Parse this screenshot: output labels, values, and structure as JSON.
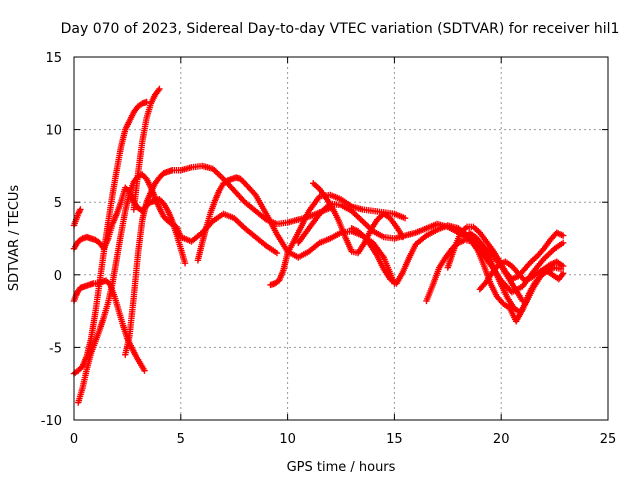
{
  "chart_data": {
    "type": "scatter",
    "title": "Day 070 of 2023, Sidereal Day-to-day VTEC variation (SDTVAR) for receiver hil1",
    "xlabel": "GPS time / hours",
    "ylabel": "SDTVAR / TECUs",
    "xlim": [
      0,
      25
    ],
    "ylim": [
      -10,
      15
    ],
    "xticks": [
      0,
      5,
      10,
      15,
      20,
      25
    ],
    "yticks": [
      -10,
      -5,
      0,
      5,
      10,
      15
    ],
    "grid": true,
    "marker": "plus",
    "color": "#ff0000",
    "series": [
      {
        "name": "track-1",
        "x": [
          0.0,
          0.2,
          0.4,
          0.6,
          0.8,
          1.0,
          1.2,
          1.4,
          1.6,
          1.8,
          2.0,
          2.2,
          2.4,
          2.6,
          2.8,
          3.0,
          3.2,
          3.4
        ],
        "y": [
          -6.8,
          -6.6,
          -6.3,
          -5.6,
          -4.4,
          -2.6,
          -0.5,
          1.6,
          3.6,
          5.5,
          7.2,
          8.8,
          10.0,
          10.6,
          11.2,
          11.6,
          11.8,
          11.9
        ]
      },
      {
        "name": "track-2",
        "x": [
          0.0,
          0.2,
          0.4,
          0.6,
          0.8,
          1.0,
          1.2,
          1.4,
          1.6,
          1.8,
          2.0,
          2.2,
          2.4,
          2.6,
          2.8,
          3.0,
          3.2,
          3.4,
          3.6,
          3.8,
          4.0,
          4.2,
          4.4,
          4.6,
          4.8,
          5.0,
          5.2
        ],
        "y": [
          1.8,
          2.3,
          2.5,
          2.6,
          2.5,
          2.4,
          2.2,
          1.8,
          2.5,
          3.5,
          4.2,
          5.0,
          6.0,
          5.7,
          5.0,
          4.6,
          4.4,
          4.8,
          5.0,
          5.1,
          5.2,
          4.9,
          4.4,
          3.7,
          2.8,
          1.8,
          0.8
        ]
      },
      {
        "name": "track-3",
        "x": [
          0.0,
          0.1,
          0.2,
          0.3,
          0.5,
          0.7,
          0.9,
          1.1,
          1.3,
          1.5,
          1.7,
          1.9,
          2.1,
          2.3,
          2.5,
          2.7,
          2.9,
          3.1,
          3.3
        ],
        "y": [
          -1.8,
          -1.4,
          -1.1,
          -0.9,
          -0.8,
          -0.7,
          -0.6,
          -0.6,
          -0.5,
          -0.4,
          -0.7,
          -1.5,
          -2.5,
          -3.5,
          -4.4,
          -5.0,
          -5.6,
          -6.1,
          -6.6
        ]
      },
      {
        "name": "track-4",
        "x": [
          0.0,
          0.1,
          0.2,
          0.3
        ],
        "y": [
          3.4,
          3.8,
          4.2,
          4.5
        ]
      },
      {
        "name": "track-5",
        "x": [
          0.2,
          0.4,
          0.6,
          0.8,
          1.0,
          1.2,
          1.4,
          1.6,
          1.8,
          2.0,
          2.2,
          2.4,
          2.6,
          2.8,
          3.0,
          3.2,
          3.4,
          3.6,
          3.8,
          4.0,
          4.2,
          4.4,
          4.6,
          4.8,
          5.0,
          5.5,
          6.0,
          6.5,
          7.0,
          7.5,
          8.0,
          8.5,
          9.0,
          9.5
        ],
        "y": [
          -8.8,
          -7.8,
          -6.5,
          -5.4,
          -4.6,
          -3.8,
          -2.9,
          -1.9,
          -0.6,
          1.1,
          2.8,
          4.4,
          5.6,
          6.4,
          6.8,
          6.9,
          6.6,
          6.0,
          5.3,
          4.6,
          4.0,
          3.7,
          3.5,
          3.3,
          2.6,
          2.3,
          2.9,
          3.7,
          4.2,
          3.9,
          3.2,
          2.6,
          2.0,
          1.5
        ]
      },
      {
        "name": "track-6",
        "x": [
          2.4,
          2.6,
          2.8,
          3.0,
          3.2,
          3.4,
          3.6,
          3.8,
          4.0,
          4.2,
          4.4,
          4.6,
          4.8,
          5.0,
          5.5,
          6.0,
          6.5,
          7.0,
          7.5,
          8.0,
          8.5,
          9.0,
          9.5,
          10.0,
          10.5,
          11.0,
          11.5,
          12.0
        ],
        "y": [
          -5.5,
          -4.2,
          -1.5,
          1.5,
          3.8,
          5.0,
          5.7,
          6.3,
          6.7,
          7.0,
          7.1,
          7.2,
          7.2,
          7.2,
          7.4,
          7.5,
          7.3,
          6.6,
          5.8,
          5.0,
          4.4,
          3.8,
          3.5,
          3.6,
          3.8,
          4.0,
          4.3,
          4.6
        ]
      },
      {
        "name": "track-7",
        "x": [
          2.8,
          3.0,
          3.2,
          3.4,
          3.6,
          3.8,
          4.0
        ],
        "y": [
          4.5,
          7.0,
          9.2,
          10.8,
          11.8,
          12.4,
          12.8
        ]
      },
      {
        "name": "track-8",
        "x": [
          5.8,
          6.0,
          6.2,
          6.4,
          6.6,
          6.8,
          7.0,
          7.2,
          7.4,
          7.6,
          7.8,
          8.0,
          8.5,
          9.0,
          9.5,
          10.0,
          10.5,
          11.0,
          11.5,
          12.0,
          12.5,
          13.0,
          13.5,
          14.0,
          14.5,
          15.0
        ],
        "y": [
          1.0,
          2.2,
          3.3,
          4.3,
          5.1,
          5.8,
          6.3,
          6.5,
          6.6,
          6.7,
          6.6,
          6.3,
          5.5,
          4.2,
          2.8,
          1.6,
          1.2,
          1.6,
          2.2,
          2.5,
          2.9,
          3.0,
          2.7,
          2.2,
          1.2,
          -0.6
        ]
      },
      {
        "name": "track-9",
        "x": [
          9.2,
          9.4,
          9.6,
          9.8,
          10.0,
          10.5,
          11.0,
          11.5,
          12.0,
          12.5,
          13.0,
          13.5,
          14.0,
          14.5,
          15.0,
          15.5
        ],
        "y": [
          -0.7,
          -0.6,
          -0.4,
          0.3,
          1.5,
          2.9,
          4.4,
          5.4,
          5.5,
          5.2,
          4.7,
          4.5,
          4.4,
          4.3,
          4.2,
          3.9
        ]
      },
      {
        "name": "track-10",
        "x": [
          10.5,
          11.0,
          11.5,
          12.0,
          12.5,
          13.0,
          13.5,
          14.0,
          14.5,
          15.0,
          15.5,
          16.0,
          16.5,
          17.0,
          17.5,
          18.0,
          18.5,
          19.0,
          19.5,
          20.0,
          20.5,
          21.0
        ],
        "y": [
          2.2,
          3.2,
          4.2,
          4.9,
          4.8,
          4.4,
          3.7,
          3.0,
          2.6,
          2.5,
          2.7,
          2.9,
          3.2,
          3.5,
          3.3,
          2.9,
          2.5,
          2.1,
          1.5,
          0.6,
          -0.6,
          -1.8
        ]
      },
      {
        "name": "track-11",
        "x": [
          11.2,
          11.5,
          11.8,
          12.1,
          12.4,
          12.7,
          13.0,
          13.3,
          13.6,
          13.9,
          14.2,
          14.5,
          14.8,
          15.1,
          15.4
        ],
        "y": [
          6.3,
          5.9,
          5.3,
          4.6,
          3.7,
          2.6,
          1.6,
          1.5,
          2.2,
          3.1,
          3.8,
          4.2,
          3.9,
          3.3,
          2.6
        ]
      },
      {
        "name": "track-12",
        "x": [
          13.0,
          13.3,
          13.6,
          13.9,
          14.2,
          14.5,
          14.8,
          15.1,
          15.4,
          15.7,
          16.0,
          16.5,
          17.0,
          17.5,
          18.0,
          18.5,
          19.0,
          19.5,
          20.0,
          20.5,
          21.0,
          21.5,
          22.0,
          22.5,
          22.9
        ],
        "y": [
          3.2,
          3.0,
          2.6,
          2.0,
          1.3,
          0.4,
          -0.3,
          -0.6,
          0.2,
          1.2,
          2.1,
          2.7,
          3.1,
          3.4,
          3.2,
          2.6,
          1.7,
          0.7,
          -0.4,
          -1.2,
          -0.8,
          0.2,
          1.1,
          1.8,
          2.2
        ]
      },
      {
        "name": "track-13",
        "x": [
          16.5,
          16.8,
          17.1,
          17.4,
          17.7,
          18.0,
          18.3,
          18.6,
          18.9,
          19.2,
          19.5,
          19.8,
          20.1,
          20.4,
          20.7,
          21.0,
          21.3,
          21.6,
          21.9,
          22.2,
          22.5,
          22.8
        ],
        "y": [
          -1.8,
          -0.7,
          0.5,
          1.2,
          1.8,
          2.2,
          2.4,
          2.3,
          1.7,
          0.6,
          -0.6,
          -1.5,
          -2.0,
          -2.3,
          -3.2,
          -2.4,
          -1.3,
          -0.5,
          0.0,
          0.3,
          0.5,
          0.4
        ]
      },
      {
        "name": "track-14",
        "x": [
          17.5,
          17.8,
          18.1,
          18.4,
          18.7,
          19.0,
          19.3,
          19.6,
          19.9,
          20.2,
          20.5,
          20.8,
          21.1,
          21.4,
          21.7,
          22.0,
          22.3,
          22.6,
          22.9
        ],
        "y": [
          0.5,
          1.8,
          2.9,
          3.3,
          3.3,
          2.9,
          2.3,
          1.7,
          1.0,
          0.2,
          -0.3,
          -0.1,
          0.4,
          0.9,
          1.3,
          1.8,
          2.4,
          2.9,
          2.7
        ]
      },
      {
        "name": "track-15",
        "x": [
          18.5,
          18.8,
          19.1,
          19.4,
          19.7,
          20.0,
          20.3,
          20.6,
          20.9,
          21.2,
          21.5,
          21.8,
          22.1,
          22.4,
          22.7,
          22.9
        ],
        "y": [
          2.9,
          2.6,
          2.1,
          1.3,
          0.3,
          -0.7,
          -1.6,
          -2.3,
          -2.6,
          -1.8,
          -0.9,
          -0.2,
          0.3,
          0.0,
          -0.3,
          0.1
        ]
      },
      {
        "name": "track-16",
        "x": [
          19.0,
          19.3,
          19.6,
          19.9,
          20.2,
          20.5,
          20.8,
          21.1,
          21.4,
          21.7,
          22.0,
          22.3,
          22.6,
          22.9
        ],
        "y": [
          -1.0,
          -0.5,
          0.2,
          0.7,
          0.9,
          0.6,
          0.1,
          -0.4,
          -0.2,
          0.1,
          0.4,
          0.7,
          0.9,
          0.6
        ]
      }
    ]
  }
}
